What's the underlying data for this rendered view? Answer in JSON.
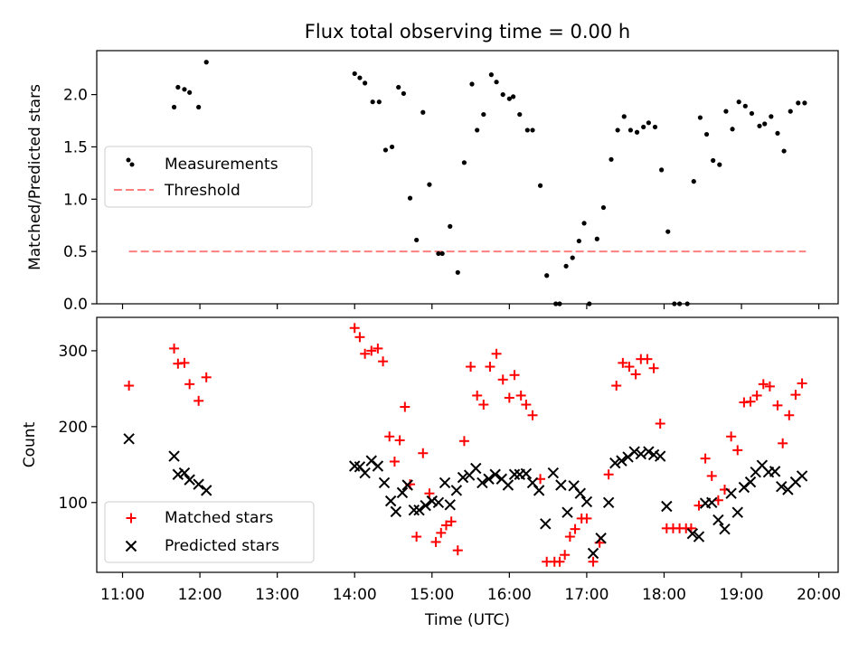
{
  "figure": {
    "title": "Flux total observing time = 0.00 h",
    "xlabel": "Time (UTC)"
  },
  "chart_data": [
    {
      "type": "scatter",
      "ylabel": "Matched/Predicted stars",
      "xlim": [
        "10:40",
        "20:15"
      ],
      "ylim": [
        0,
        2.42
      ],
      "yticks": [
        0.0,
        0.5,
        1.0,
        1.5,
        2.0
      ],
      "ytick_labels": [
        "0.0",
        "0.5",
        "1.0",
        "1.5",
        "2.0"
      ],
      "legend_position": "center-left",
      "threshold": {
        "name": "Threshold",
        "value": 0.5,
        "x_range": [
          "11:05",
          "19:50"
        ],
        "color": "#ff7f7f"
      },
      "series": [
        {
          "name": "Measurements",
          "color": "#000000",
          "points": [
            [
              "11:05",
              1.37
            ],
            [
              "11:06",
              1.33
            ],
            [
              "11:40",
              1.88
            ],
            [
              "11:43",
              2.07
            ],
            [
              "11:48",
              2.05
            ],
            [
              "11:52",
              2.02
            ],
            [
              "11:59",
              1.88
            ],
            [
              "12:05",
              2.31
            ],
            [
              "14:00",
              2.2
            ],
            [
              "14:04",
              2.16
            ],
            [
              "14:08",
              2.11
            ],
            [
              "14:14",
              1.93
            ],
            [
              "14:19",
              1.93
            ],
            [
              "14:24",
              1.47
            ],
            [
              "14:29",
              1.5
            ],
            [
              "14:34",
              2.07
            ],
            [
              "14:38",
              2.01
            ],
            [
              "14:43",
              1.01
            ],
            [
              "14:48",
              0.61
            ],
            [
              "14:53",
              1.83
            ],
            [
              "14:58",
              1.14
            ],
            [
              "15:05",
              0.48
            ],
            [
              "15:08",
              0.48
            ],
            [
              "15:14",
              0.74
            ],
            [
              "15:20",
              0.3
            ],
            [
              "15:25",
              1.35
            ],
            [
              "15:31",
              2.1
            ],
            [
              "15:35",
              1.66
            ],
            [
              "15:40",
              1.81
            ],
            [
              "15:46",
              2.19
            ],
            [
              "15:50",
              2.12
            ],
            [
              "15:55",
              2.0
            ],
            [
              "16:00",
              1.96
            ],
            [
              "16:03",
              1.98
            ],
            [
              "16:08",
              1.81
            ],
            [
              "16:14",
              1.66
            ],
            [
              "16:18",
              1.66
            ],
            [
              "16:24",
              1.13
            ],
            [
              "16:29",
              0.27
            ],
            [
              "16:36",
              0.0
            ],
            [
              "16:39",
              0.0
            ],
            [
              "16:44",
              0.36
            ],
            [
              "16:49",
              0.44
            ],
            [
              "16:54",
              0.6
            ],
            [
              "16:58",
              0.77
            ],
            [
              "17:02",
              0.0
            ],
            [
              "17:08",
              0.62
            ],
            [
              "17:13",
              0.92
            ],
            [
              "17:19",
              1.38
            ],
            [
              "17:24",
              1.66
            ],
            [
              "17:29",
              1.79
            ],
            [
              "17:34",
              1.66
            ],
            [
              "17:39",
              1.64
            ],
            [
              "17:44",
              1.69
            ],
            [
              "17:48",
              1.73
            ],
            [
              "17:53",
              1.69
            ],
            [
              "17:58",
              1.28
            ],
            [
              "18:03",
              0.69
            ],
            [
              "18:08",
              0.0
            ],
            [
              "18:12",
              0.0
            ],
            [
              "18:18",
              0.0
            ],
            [
              "18:23",
              1.17
            ],
            [
              "18:28",
              1.78
            ],
            [
              "18:33",
              1.62
            ],
            [
              "18:38",
              1.37
            ],
            [
              "18:43",
              1.33
            ],
            [
              "18:48",
              1.84
            ],
            [
              "18:53",
              1.67
            ],
            [
              "18:58",
              1.93
            ],
            [
              "19:03",
              1.89
            ],
            [
              "19:08",
              1.82
            ],
            [
              "19:14",
              1.7
            ],
            [
              "19:18",
              1.72
            ],
            [
              "19:23",
              1.79
            ],
            [
              "19:28",
              1.63
            ],
            [
              "19:33",
              1.46
            ],
            [
              "19:38",
              1.84
            ],
            [
              "19:44",
              1.92
            ],
            [
              "19:49",
              1.92
            ]
          ]
        }
      ]
    },
    {
      "type": "scatter",
      "ylabel": "Count",
      "xlim": [
        "10:40",
        "20:15"
      ],
      "ylim": [
        8,
        344
      ],
      "yticks": [
        100,
        200,
        300
      ],
      "ytick_labels": [
        "100",
        "200",
        "300"
      ],
      "xticks": [
        "11:00",
        "12:00",
        "13:00",
        "14:00",
        "15:00",
        "16:00",
        "17:00",
        "18:00",
        "19:00",
        "20:00"
      ],
      "xtick_labels": [
        "11:00",
        "12:00",
        "13:00",
        "14:00",
        "15:00",
        "16:00",
        "17:00",
        "18:00",
        "19:00",
        "20:00"
      ],
      "legend_position": "lower-left",
      "series": [
        {
          "name": "Matched stars",
          "marker": "plus",
          "color": "#ff0000",
          "points": [
            [
              "11:05",
              254
            ],
            [
              "11:40",
              303
            ],
            [
              "11:43",
              283
            ],
            [
              "11:48",
              284
            ],
            [
              "11:52",
              256
            ],
            [
              "11:59",
              234
            ],
            [
              "12:05",
              265
            ],
            [
              "14:00",
              330
            ],
            [
              "14:04",
              318
            ],
            [
              "14:08",
              296
            ],
            [
              "14:13",
              300
            ],
            [
              "14:18",
              303
            ],
            [
              "14:22",
              286
            ],
            [
              "14:27",
              187
            ],
            [
              "14:31",
              154
            ],
            [
              "14:35",
              182
            ],
            [
              "14:39",
              226
            ],
            [
              "14:43",
              124
            ],
            [
              "14:48",
              55
            ],
            [
              "14:53",
              165
            ],
            [
              "14:58",
              112
            ],
            [
              "15:03",
              48
            ],
            [
              "15:07",
              60
            ],
            [
              "15:11",
              70
            ],
            [
              "15:15",
              75
            ],
            [
              "15:20",
              37
            ],
            [
              "15:25",
              181
            ],
            [
              "15:30",
              279
            ],
            [
              "15:35",
              241
            ],
            [
              "15:40",
              229
            ],
            [
              "15:45",
              279
            ],
            [
              "15:50",
              296
            ],
            [
              "15:55",
              262
            ],
            [
              "16:00",
              238
            ],
            [
              "16:04",
              268
            ],
            [
              "16:09",
              241
            ],
            [
              "16:13",
              229
            ],
            [
              "16:18",
              215
            ],
            [
              "16:24",
              131
            ],
            [
              "16:29",
              22
            ],
            [
              "16:35",
              22
            ],
            [
              "16:39",
              22
            ],
            [
              "16:43",
              31
            ],
            [
              "16:47",
              55
            ],
            [
              "16:51",
              65
            ],
            [
              "16:56",
              79
            ],
            [
              "17:00",
              79
            ],
            [
              "17:05",
              22
            ],
            [
              "17:10",
              47
            ],
            [
              "17:17",
              137
            ],
            [
              "17:23",
              254
            ],
            [
              "17:28",
              284
            ],
            [
              "17:33",
              279
            ],
            [
              "17:38",
              269
            ],
            [
              "17:42",
              289
            ],
            [
              "17:47",
              289
            ],
            [
              "17:52",
              277
            ],
            [
              "17:57",
              204
            ],
            [
              "18:02",
              66
            ],
            [
              "18:07",
              66
            ],
            [
              "18:12",
              66
            ],
            [
              "18:17",
              66
            ],
            [
              "18:21",
              66
            ],
            [
              "18:27",
              96
            ],
            [
              "18:32",
              158
            ],
            [
              "18:37",
              135
            ],
            [
              "18:42",
              103
            ],
            [
              "18:47",
              117
            ],
            [
              "18:52",
              187
            ],
            [
              "18:57",
              169
            ],
            [
              "19:02",
              232
            ],
            [
              "19:07",
              233
            ],
            [
              "19:12",
              241
            ],
            [
              "19:17",
              256
            ],
            [
              "19:22",
              253
            ],
            [
              "19:28",
              228
            ],
            [
              "19:32",
              178
            ],
            [
              "19:37",
              215
            ],
            [
              "19:42",
              242
            ],
            [
              "19:47",
              257
            ]
          ]
        },
        {
          "name": "Predicted stars",
          "marker": "x",
          "color": "#000000",
          "points": [
            [
              "11:05",
              184
            ],
            [
              "11:40",
              161
            ],
            [
              "11:43",
              137
            ],
            [
              "11:48",
              139
            ],
            [
              "11:52",
              130
            ],
            [
              "11:59",
              124
            ],
            [
              "12:05",
              116
            ],
            [
              "14:00",
              148
            ],
            [
              "14:04",
              147
            ],
            [
              "14:08",
              139
            ],
            [
              "14:13",
              155
            ],
            [
              "14:18",
              148
            ],
            [
              "14:23",
              126
            ],
            [
              "14:28",
              102
            ],
            [
              "14:32",
              88
            ],
            [
              "14:37",
              113
            ],
            [
              "14:41",
              123
            ],
            [
              "14:46",
              90
            ],
            [
              "14:50",
              90
            ],
            [
              "14:55",
              96
            ],
            [
              "15:00",
              102
            ],
            [
              "15:05",
              100
            ],
            [
              "15:10",
              126
            ],
            [
              "15:14",
              97
            ],
            [
              "15:19",
              116
            ],
            [
              "15:24",
              133
            ],
            [
              "15:29",
              136
            ],
            [
              "15:34",
              145
            ],
            [
              "15:39",
              126
            ],
            [
              "15:44",
              131
            ],
            [
              "15:49",
              137
            ],
            [
              "15:54",
              131
            ],
            [
              "15:59",
              123
            ],
            [
              "16:04",
              137
            ],
            [
              "16:08",
              137
            ],
            [
              "16:13",
              138
            ],
            [
              "16:18",
              126
            ],
            [
              "16:23",
              116
            ],
            [
              "16:28",
              72
            ],
            [
              "16:34",
              139
            ],
            [
              "16:40",
              123
            ],
            [
              "16:45",
              87
            ],
            [
              "16:50",
              122
            ],
            [
              "16:55",
              112
            ],
            [
              "17:00",
              101
            ],
            [
              "17:05",
              33
            ],
            [
              "17:11",
              53
            ],
            [
              "17:17",
              100
            ],
            [
              "17:22",
              152
            ],
            [
              "17:27",
              155
            ],
            [
              "17:32",
              160
            ],
            [
              "17:37",
              167
            ],
            [
              "17:42",
              164
            ],
            [
              "17:48",
              167
            ],
            [
              "17:52",
              163
            ],
            [
              "17:57",
              161
            ],
            [
              "18:02",
              95
            ],
            [
              "18:22",
              59
            ],
            [
              "18:27",
              55
            ],
            [
              "18:32",
              99
            ],
            [
              "18:37",
              100
            ],
            [
              "18:42",
              77
            ],
            [
              "18:47",
              65
            ],
            [
              "18:52",
              112
            ],
            [
              "18:57",
              87
            ],
            [
              "19:02",
              120
            ],
            [
              "19:07",
              127
            ],
            [
              "19:11",
              140
            ],
            [
              "19:16",
              149
            ],
            [
              "19:21",
              140
            ],
            [
              "19:26",
              141
            ],
            [
              "19:31",
              121
            ],
            [
              "19:36",
              117
            ],
            [
              "19:42",
              127
            ],
            [
              "19:47",
              135
            ]
          ]
        }
      ]
    }
  ]
}
